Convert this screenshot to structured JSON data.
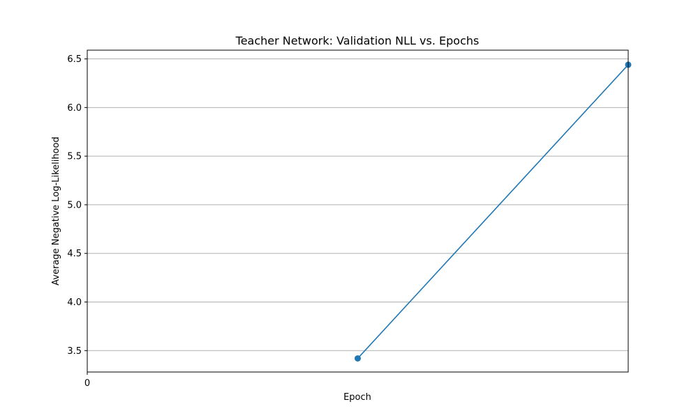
{
  "chart_data": {
    "type": "line",
    "title": "Teacher Network: Validation NLL vs. Epochs",
    "xlabel": "Epoch",
    "ylabel": "Average Negative Log-Likelihood",
    "x_ticks": [
      "0"
    ],
    "y_ticks": [
      "3.5",
      "4.0",
      "4.5",
      "5.0",
      "5.5",
      "6.0",
      "6.5"
    ],
    "xlim": [
      -1,
      1
    ],
    "ylim": [
      3.28,
      6.59
    ],
    "grid": "horizontal",
    "series": [
      {
        "x": [
          0,
          1
        ],
        "y": [
          3.42,
          6.44
        ],
        "color": "#1f77b4",
        "marker": "circle"
      }
    ]
  }
}
